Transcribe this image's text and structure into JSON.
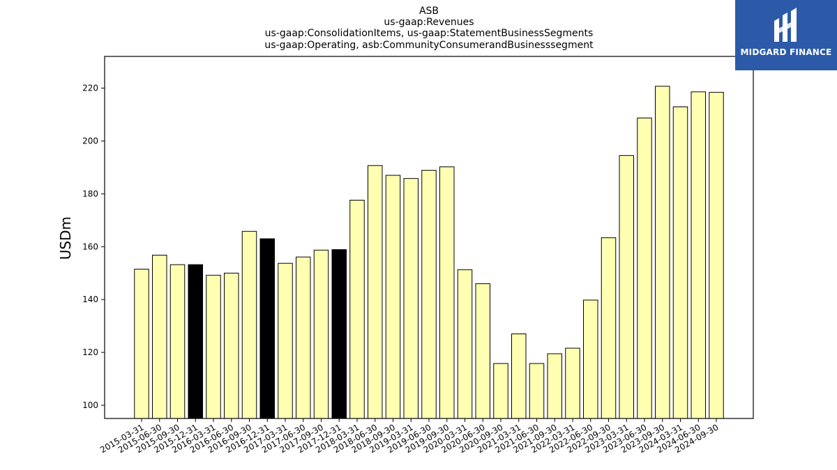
{
  "chart_data": {
    "type": "bar",
    "title_lines": [
      "ASB",
      "us-gaap:Revenues",
      "us-gaap:ConsolidationItems, us-gaap:StatementBusinessSegments",
      "us-gaap:Operating, asb:CommunityConsumerandBusinesssegment"
    ],
    "ylabel": "USDm",
    "ylim": [
      95,
      232
    ],
    "yticks": [
      100,
      120,
      140,
      160,
      180,
      200,
      220
    ],
    "categories": [
      "2015-03-31",
      "2015-06-30",
      "2015-09-30",
      "2015-12-31",
      "2016-03-31",
      "2016-06-30",
      "2016-09-30",
      "2016-12-31",
      "2017-03-31",
      "2017-06-30",
      "2017-09-30",
      "2017-12-31",
      "2018-03-31",
      "2018-06-30",
      "2018-09-30",
      "2019-03-31",
      "2019-06-30",
      "2019-09-30",
      "2020-03-31",
      "2020-06-30",
      "2020-09-30",
      "2021-03-31",
      "2021-06-30",
      "2021-09-30",
      "2022-03-31",
      "2022-06-30",
      "2022-09-30",
      "2023-03-31",
      "2023-06-30",
      "2023-09-30",
      "2024-03-31",
      "2024-06-30",
      "2024-09-30"
    ],
    "values": [
      151.5,
      156.8,
      153.2,
      153.2,
      149.2,
      150.0,
      165.8,
      163.0,
      153.7,
      156.1,
      158.7,
      158.9,
      177.6,
      190.7,
      187.0,
      185.8,
      188.9,
      190.2,
      151.3,
      146.0,
      115.8,
      127.0,
      115.8,
      119.5,
      121.6,
      139.8,
      163.4,
      194.5,
      208.7,
      220.7,
      212.9,
      218.6,
      218.4
    ],
    "highlight_indices": [
      3,
      7,
      11
    ],
    "colors": {
      "bar": "#ffffb2",
      "highlight": "#000000",
      "edge": "#000000"
    }
  },
  "logo": {
    "text": "MIDGARD FINANCE",
    "background": "#2c5aa8"
  }
}
